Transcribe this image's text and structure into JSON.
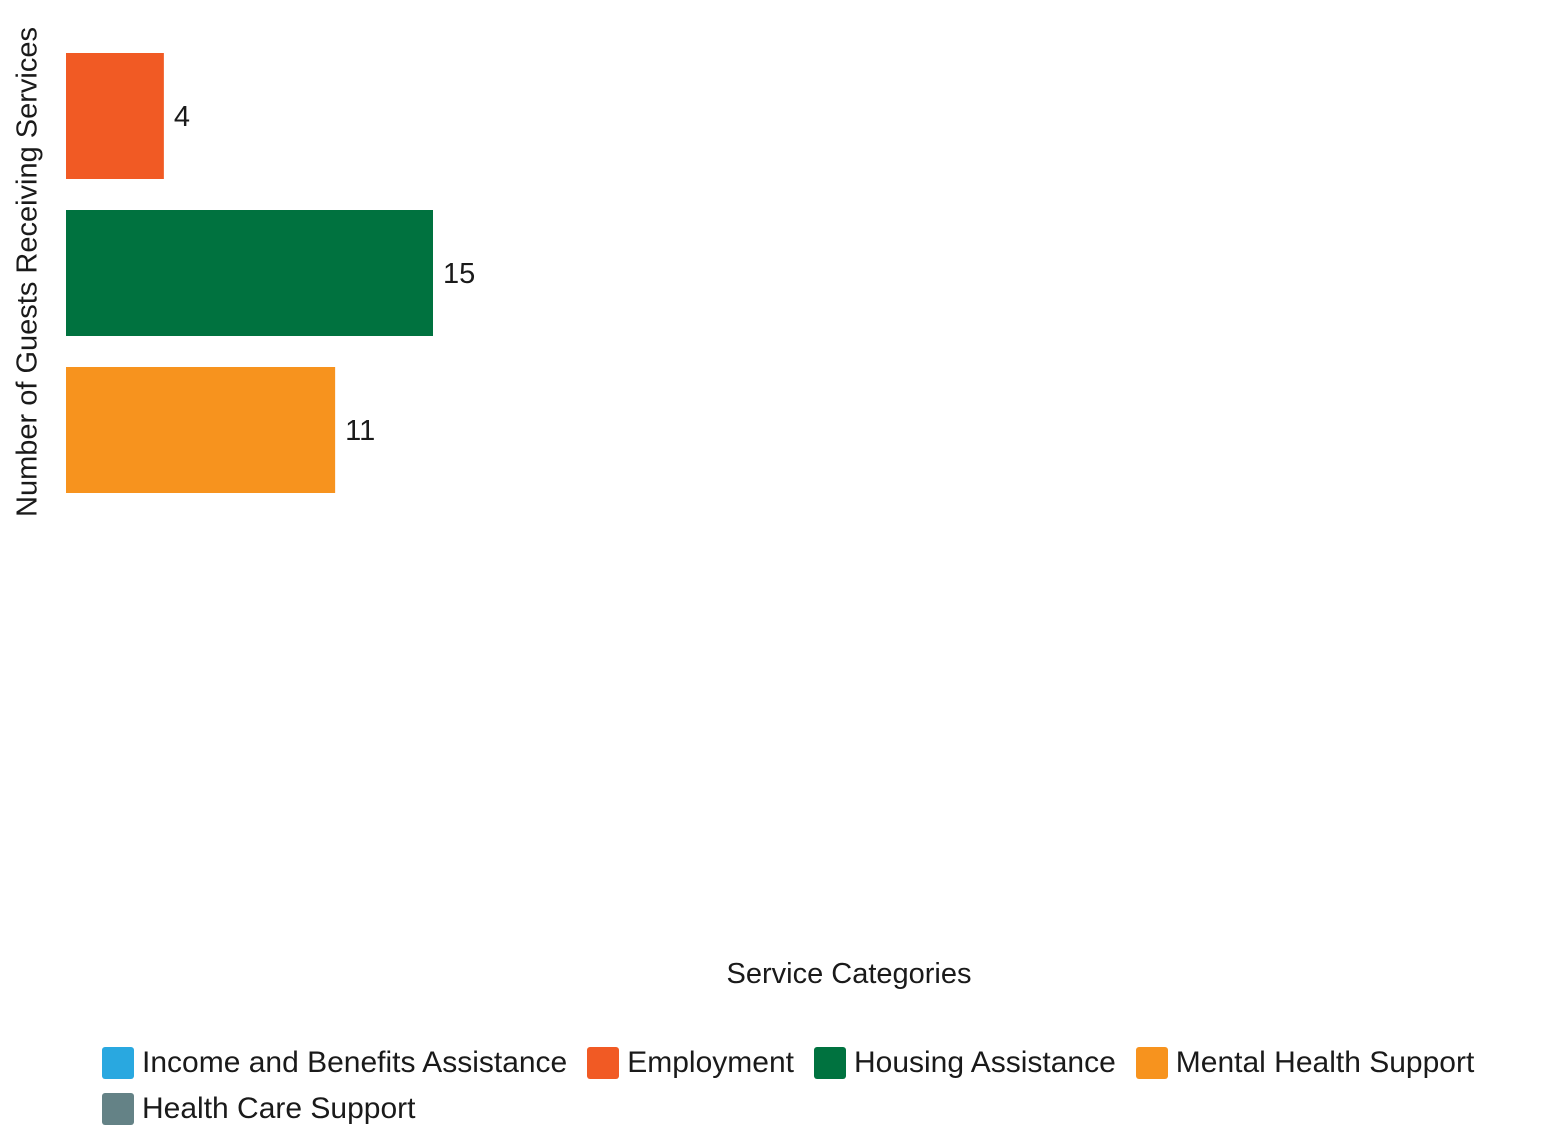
{
  "chart_data": {
    "type": "bar",
    "orientation": "horizontal",
    "xlabel": "Service Categories",
    "ylabel": "Number of Guests Receiving Services",
    "xlim": [
      0,
      60
    ],
    "grid": false,
    "legend_position": "bottom",
    "categories": [
      "Employment",
      "Housing Assistance",
      "Mental Health Support"
    ],
    "values": [
      4,
      15,
      11
    ],
    "colors": [
      "#f15a24",
      "#00723f",
      "#f7931e"
    ]
  },
  "legend": {
    "items": [
      {
        "label": "Income and Benefits Assistance",
        "color": "#29a8e0"
      },
      {
        "label": "Employment",
        "color": "#f15a24"
      },
      {
        "label": "Housing Assistance",
        "color": "#00723f"
      },
      {
        "label": "Mental Health Support",
        "color": "#f7931e"
      },
      {
        "label": "Health Care Support",
        "color": "#648286"
      }
    ]
  }
}
